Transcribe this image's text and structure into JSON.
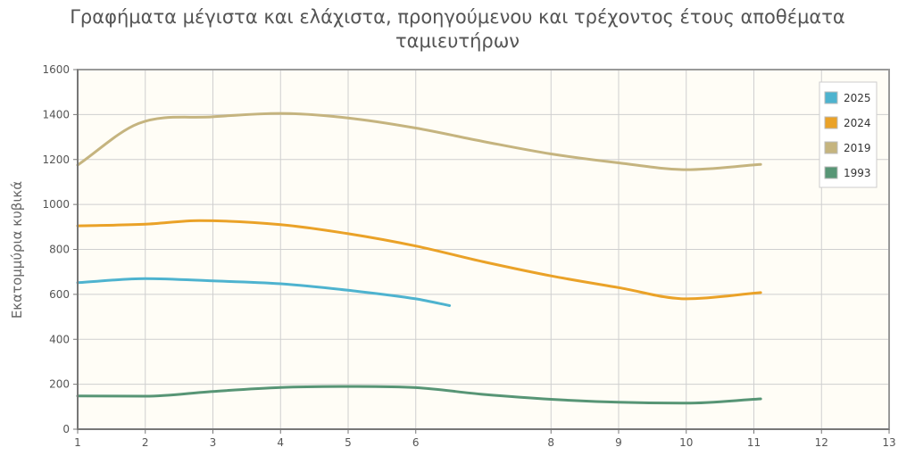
{
  "chart_data": {
    "type": "line",
    "title_lines": [
      "Γραφήματα μέγιστα και ελάχιστα, προηγούμενου και τρέχοντος έτους αποθέματα",
      "ταμιευτήρων"
    ],
    "xlabel": "",
    "ylabel": "Εκατομμύρια κυβικά",
    "xlim": [
      1,
      13
    ],
    "ylim": [
      0,
      1600
    ],
    "x_ticks": [
      1,
      2,
      3,
      4,
      5,
      6,
      8,
      9,
      10,
      11,
      12,
      13
    ],
    "y_ticks": [
      0,
      200,
      400,
      600,
      800,
      1000,
      1200,
      1400,
      1600
    ],
    "grid": true,
    "legend_position": "top-right",
    "plot_background": "#fffdf6",
    "series": [
      {
        "name": "2025",
        "color": "#4eb3cf",
        "points": [
          [
            1,
            652
          ],
          [
            2,
            670
          ],
          [
            3,
            660
          ],
          [
            4,
            647
          ],
          [
            5,
            618
          ],
          [
            6,
            580
          ],
          [
            6.5,
            550
          ]
        ]
      },
      {
        "name": "2024",
        "color": "#eaa228",
        "points": [
          [
            1,
            905
          ],
          [
            2,
            912
          ],
          [
            2.8,
            928
          ],
          [
            4,
            910
          ],
          [
            5,
            870
          ],
          [
            6,
            815
          ],
          [
            7,
            745
          ],
          [
            8,
            682
          ],
          [
            9,
            630
          ],
          [
            10,
            580
          ],
          [
            11.1,
            608
          ]
        ]
      },
      {
        "name": "2019",
        "color": "#c5b47f",
        "points": [
          [
            1,
            1175
          ],
          [
            1.9,
            1360
          ],
          [
            3,
            1390
          ],
          [
            4,
            1405
          ],
          [
            5,
            1385
          ],
          [
            6,
            1340
          ],
          [
            7,
            1280
          ],
          [
            8,
            1225
          ],
          [
            9,
            1185
          ],
          [
            10,
            1155
          ],
          [
            11.1,
            1178
          ]
        ]
      },
      {
        "name": "1993",
        "color": "#579575",
        "points": [
          [
            1,
            148
          ],
          [
            2,
            147
          ],
          [
            3,
            168
          ],
          [
            4,
            186
          ],
          [
            5,
            190
          ],
          [
            6,
            185
          ],
          [
            7,
            155
          ],
          [
            8,
            133
          ],
          [
            9,
            120
          ],
          [
            10,
            116
          ],
          [
            11.1,
            135
          ]
        ]
      }
    ]
  }
}
